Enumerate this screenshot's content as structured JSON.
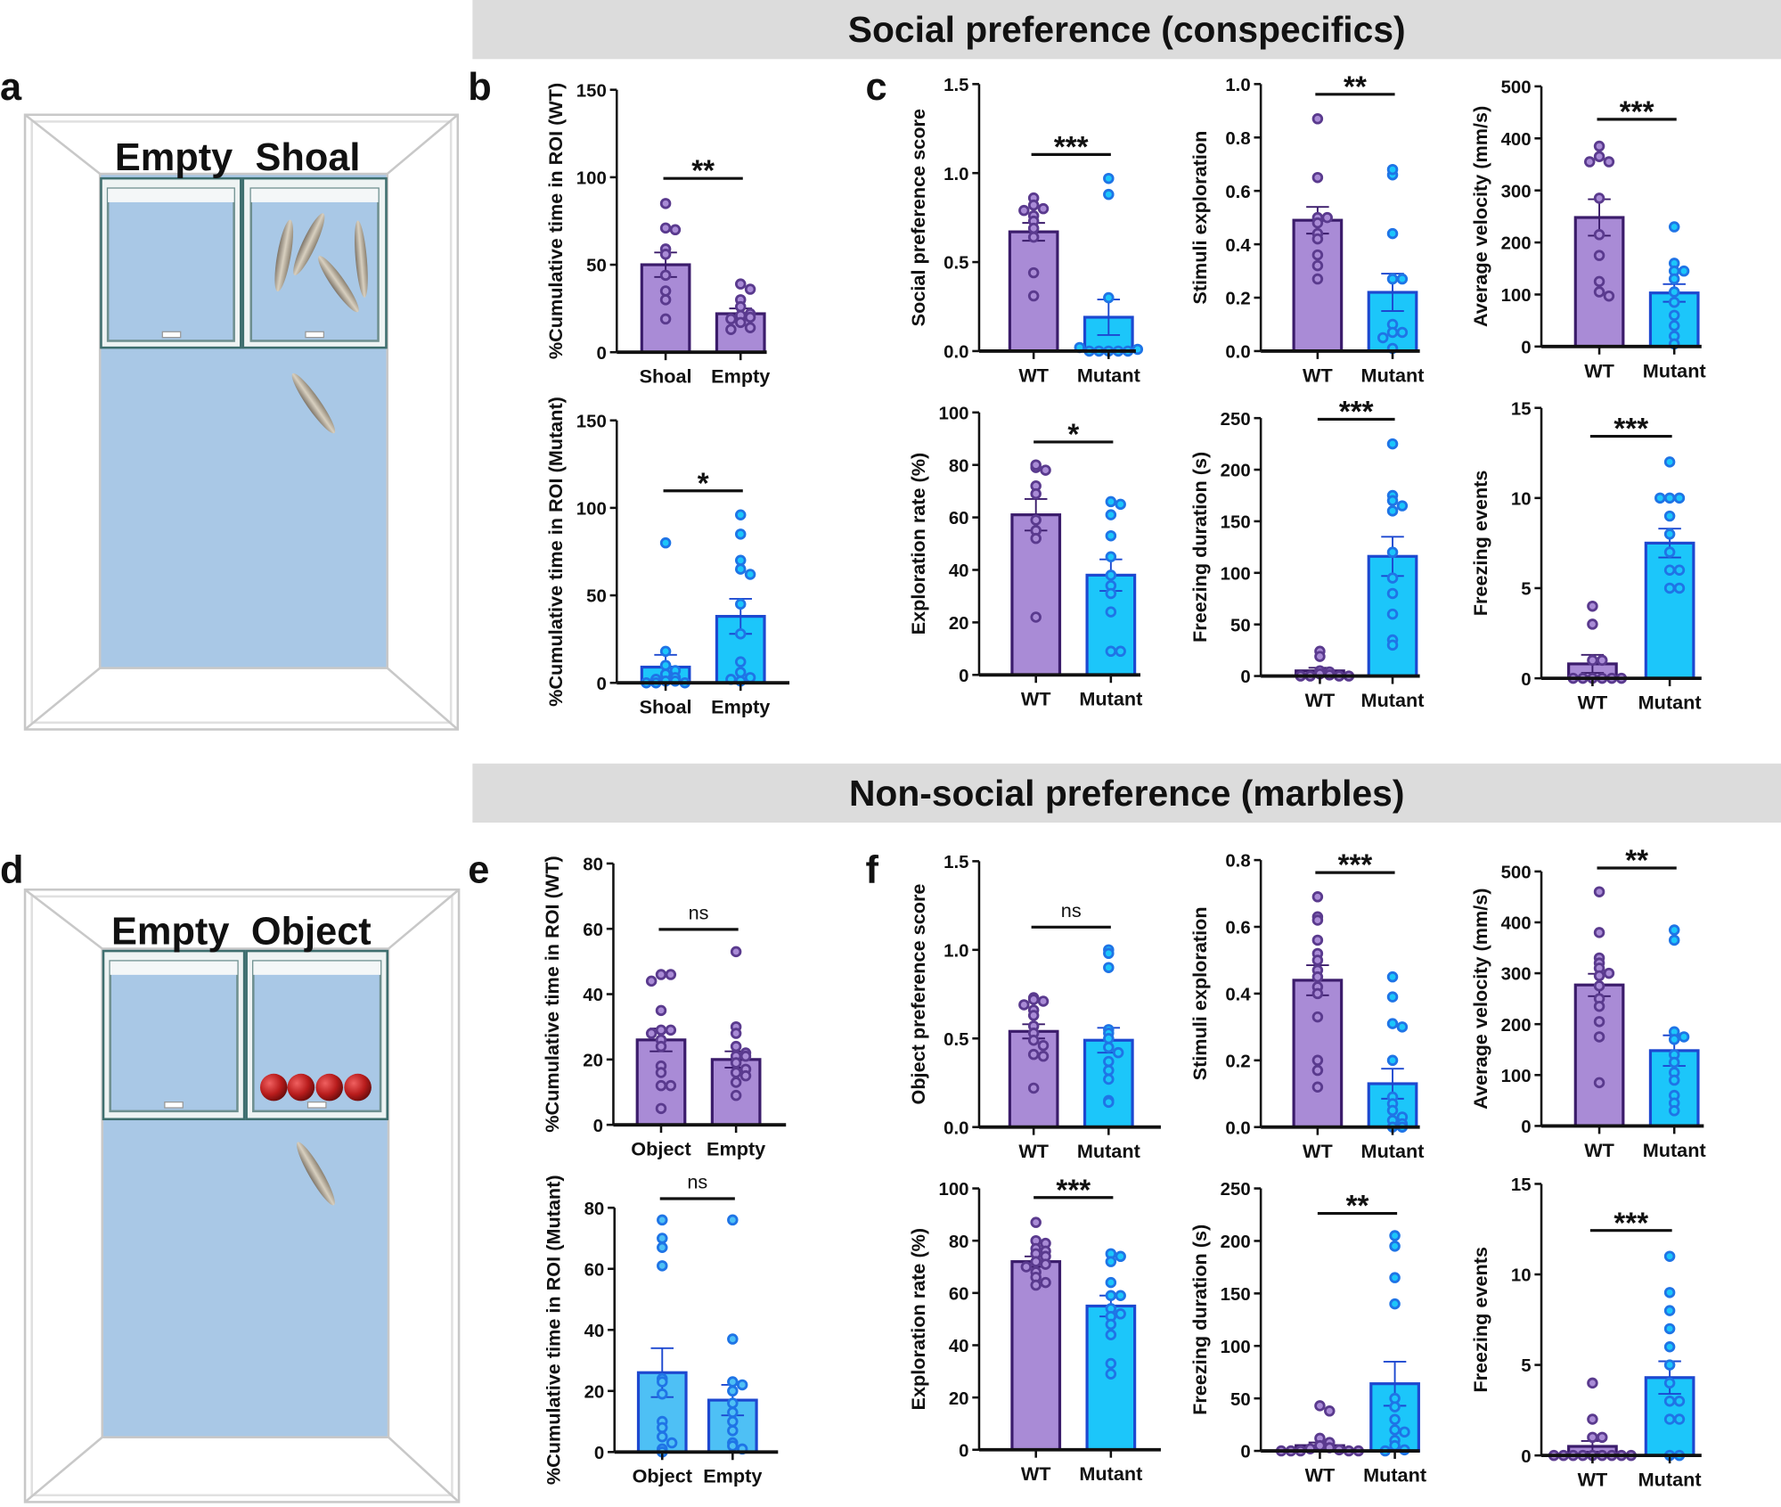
{
  "headers": {
    "social": "Social preference (conspecifics)",
    "nonsocial": "Non-social preference (marbles)"
  },
  "panel_letters": [
    "a",
    "b",
    "c",
    "d",
    "e",
    "f"
  ],
  "tank_a": {
    "label_left": "Empty",
    "label_right": "Shoal"
  },
  "tank_d": {
    "label_left": "Empty",
    "label_right": "Object"
  },
  "colors": {
    "wt_bar": "#a98bd6",
    "wt_edge": "#3b1c6b",
    "wt_point": "#5a3a8e",
    "mut_bar": "#1cc6fa",
    "mut_edge": "#1d48d0",
    "mut_point": "#1f74e6",
    "mut_bar_light": "#4ec0f5",
    "tank_water": "#a9c8e6",
    "marble": "#b81c1c"
  },
  "chart_data": [
    {
      "panel": "b",
      "type": "bar",
      "ylabel": "%Cumulative time in ROI (WT)",
      "ylim": [
        0,
        150
      ],
      "yticks": [
        "0",
        "50",
        "100",
        "150"
      ],
      "categories": [
        "Shoal",
        "Empty"
      ],
      "groups": [
        "wt",
        "wt"
      ],
      "significance": "**",
      "series": [
        {
          "mean": 50,
          "sem": 7,
          "points": [
            85,
            71,
            70,
            59,
            56,
            44,
            35,
            30,
            19
          ]
        },
        {
          "mean": 22,
          "sem": 3,
          "points": [
            39,
            36,
            30,
            26,
            22,
            21,
            20,
            19,
            17,
            14,
            13
          ]
        }
      ]
    },
    {
      "panel": "b",
      "type": "bar",
      "ylabel": "%Cumulative time in ROI (Mutant)",
      "ylim": [
        0,
        150
      ],
      "yticks": [
        "0",
        "50",
        "100",
        "150"
      ],
      "categories": [
        "Shoal",
        "Empty"
      ],
      "groups": [
        "mut",
        "mut"
      ],
      "significance": "*",
      "series": [
        {
          "mean": 9,
          "sem": 7,
          "points": [
            80,
            18,
            10,
            7,
            5,
            3,
            2,
            1,
            1,
            0,
            0,
            0
          ]
        },
        {
          "mean": 38,
          "sem": 10,
          "points": [
            96,
            85,
            70,
            65,
            62,
            45,
            28,
            12,
            6,
            3,
            2,
            1
          ]
        }
      ]
    },
    {
      "panel": "c",
      "type": "bar",
      "ylabel": "Social preference score",
      "ylim": [
        0,
        1.5
      ],
      "yticks": [
        "0.0",
        "0.5",
        "1.0",
        "1.5"
      ],
      "categories": [
        "WT",
        "Mutant"
      ],
      "groups": [
        "wt",
        "mut"
      ],
      "significance": "***",
      "series": [
        {
          "mean": 0.67,
          "sem": 0.05,
          "points": [
            0.86,
            0.82,
            0.8,
            0.79,
            0.76,
            0.73,
            0.69,
            0.64,
            0.44,
            0.31
          ]
        },
        {
          "mean": 0.19,
          "sem": 0.1,
          "points": [
            0.97,
            0.88,
            0.3,
            0.0,
            0.0,
            0.0,
            0.0,
            0.0,
            0.01,
            0.02
          ]
        }
      ]
    },
    {
      "panel": "c",
      "type": "bar",
      "ylabel": "Stimuli exploration",
      "ylim": [
        0,
        1.0
      ],
      "yticks": [
        "0.0",
        "0.2",
        "0.4",
        "0.6",
        "0.8",
        "1.0"
      ],
      "categories": [
        "WT",
        "Mutant"
      ],
      "groups": [
        "wt",
        "mut"
      ],
      "significance": "**",
      "series": [
        {
          "mean": 0.49,
          "sem": 0.05,
          "points": [
            0.87,
            0.65,
            0.5,
            0.5,
            0.48,
            0.44,
            0.42,
            0.36,
            0.32,
            0.27
          ]
        },
        {
          "mean": 0.22,
          "sem": 0.07,
          "points": [
            0.66,
            0.68,
            0.44,
            0.27,
            0.27,
            0.1,
            0.07,
            0.07,
            0.05,
            0.01
          ]
        }
      ]
    },
    {
      "panel": "c",
      "type": "bar",
      "ylabel": "Average velocity (mm/s)",
      "ylim": [
        0,
        500
      ],
      "yticks": [
        "0",
        "100",
        "200",
        "300",
        "400",
        "500"
      ],
      "categories": [
        "WT",
        "Mutant"
      ],
      "groups": [
        "wt",
        "mut"
      ],
      "significance": "***",
      "series": [
        {
          "mean": 248,
          "sem": 35,
          "points": [
            385,
            365,
            355,
            355,
            285,
            215,
            175,
            125,
            105,
            97
          ]
        },
        {
          "mean": 103,
          "sem": 17,
          "points": [
            230,
            160,
            145,
            145,
            130,
            105,
            85,
            60,
            40,
            20,
            5
          ]
        }
      ]
    },
    {
      "panel": "c",
      "type": "bar",
      "ylabel": "Exploration rate (%)",
      "ylim": [
        0,
        100
      ],
      "yticks": [
        "0",
        "20",
        "40",
        "60",
        "80",
        "100"
      ],
      "categories": [
        "WT",
        "Mutant"
      ],
      "groups": [
        "wt",
        "mut"
      ],
      "significance": "*",
      "series": [
        {
          "mean": 61,
          "sem": 6,
          "points": [
            79,
            80,
            78,
            72,
            69,
            59,
            55,
            52,
            22
          ]
        },
        {
          "mean": 38,
          "sem": 6,
          "points": [
            66,
            65,
            61,
            53,
            45,
            38,
            34,
            31,
            24,
            9,
            9
          ]
        }
      ]
    },
    {
      "panel": "c",
      "type": "bar",
      "ylabel": "Freezing duration (s)",
      "ylim": [
        0,
        250
      ],
      "yticks": [
        "0",
        "50",
        "100",
        "150",
        "200",
        "250"
      ],
      "categories": [
        "WT",
        "Mutant"
      ],
      "groups": [
        "wt",
        "mut"
      ],
      "significance": "***",
      "series": [
        {
          "mean": 5,
          "sem": 3,
          "points": [
            24,
            19,
            5,
            4,
            2,
            1,
            0,
            0,
            0,
            0
          ]
        },
        {
          "mean": 116,
          "sem": 19,
          "points": [
            225,
            175,
            170,
            160,
            165,
            120,
            95,
            80,
            60,
            35,
            30
          ]
        }
      ]
    },
    {
      "panel": "c",
      "type": "bar",
      "ylabel": "Freezing events",
      "ylim": [
        0,
        15
      ],
      "yticks": [
        "0",
        "5",
        "10",
        "15"
      ],
      "categories": [
        "WT",
        "Mutant"
      ],
      "groups": [
        "wt",
        "mut"
      ],
      "significance": "***",
      "series": [
        {
          "mean": 0.8,
          "sem": 0.5,
          "points": [
            4,
            3,
            1,
            1,
            0,
            0,
            0,
            0,
            0,
            0
          ]
        },
        {
          "mean": 7.5,
          "sem": 0.8,
          "points": [
            12,
            10,
            10,
            10,
            9,
            8,
            7,
            6,
            6,
            5,
            5
          ]
        }
      ]
    },
    {
      "panel": "e",
      "type": "bar",
      "ylabel": "%Cumulative time in ROI (WT)",
      "ylim": [
        0,
        80
      ],
      "yticks": [
        "0",
        "20",
        "40",
        "60",
        "80"
      ],
      "categories": [
        "Object",
        "Empty"
      ],
      "groups": [
        "wt",
        "wt"
      ],
      "significance": "ns",
      "series": [
        {
          "mean": 26,
          "sem": 3.5,
          "points": [
            46,
            46,
            44,
            35,
            29,
            29,
            28,
            26,
            24,
            18,
            16,
            12,
            12,
            5
          ]
        },
        {
          "mean": 20,
          "sem": 2.5,
          "points": [
            53,
            30,
            28,
            24,
            22,
            21,
            21,
            19,
            17,
            16,
            15,
            13,
            9
          ]
        }
      ]
    },
    {
      "panel": "e",
      "type": "bar",
      "ylabel": "%Cumulative time in ROI (Mutant)",
      "ylim": [
        0,
        80
      ],
      "yticks": [
        "0",
        "20",
        "40",
        "60",
        "80"
      ],
      "categories": [
        "Object",
        "Empty"
      ],
      "groups": [
        "mutl",
        "mutl"
      ],
      "significance": "ns",
      "series": [
        {
          "mean": 26,
          "sem": 8,
          "points": [
            76,
            70,
            67,
            61,
            24,
            23,
            19,
            10,
            8,
            5,
            3,
            1,
            0
          ]
        },
        {
          "mean": 17,
          "sem": 5,
          "points": [
            76,
            37,
            23,
            22,
            20,
            16,
            13,
            10,
            7,
            3,
            2,
            1
          ]
        }
      ]
    },
    {
      "panel": "f",
      "type": "bar",
      "ylabel": "Object preference score",
      "ylim": [
        0,
        1.5
      ],
      "yticks": [
        "0.0",
        "0.5",
        "1.0",
        "1.5"
      ],
      "categories": [
        "WT",
        "Mutant"
      ],
      "groups": [
        "wt",
        "mut"
      ],
      "significance": "ns",
      "series": [
        {
          "mean": 0.54,
          "sem": 0.04,
          "points": [
            0.73,
            0.72,
            0.71,
            0.69,
            0.66,
            0.63,
            0.57,
            0.53,
            0.49,
            0.46,
            0.41,
            0.4,
            0.22
          ]
        },
        {
          "mean": 0.49,
          "sem": 0.07,
          "points": [
            1.0,
            0.98,
            0.9,
            0.55,
            0.53,
            0.5,
            0.45,
            0.42,
            0.37,
            0.32,
            0.27,
            0.15,
            0.14
          ]
        }
      ]
    },
    {
      "panel": "f",
      "type": "bar",
      "ylabel": "Stimuli exploration",
      "ylim": [
        0,
        0.8
      ],
      "yticks": [
        "0.0",
        "0.2",
        "0.4",
        "0.6",
        "0.8"
      ],
      "categories": [
        "WT",
        "Mutant"
      ],
      "groups": [
        "wt",
        "mut"
      ],
      "significance": "***",
      "series": [
        {
          "mean": 0.44,
          "sem": 0.045,
          "points": [
            0.69,
            0.63,
            0.62,
            0.56,
            0.52,
            0.5,
            0.47,
            0.45,
            0.42,
            0.4,
            0.33,
            0.2,
            0.17,
            0.12
          ]
        },
        {
          "mean": 0.13,
          "sem": 0.045,
          "points": [
            0.45,
            0.39,
            0.31,
            0.3,
            0.2,
            0.09,
            0.07,
            0.05,
            0.03,
            0.02,
            0.01,
            0,
            0
          ]
        }
      ]
    },
    {
      "panel": "f",
      "type": "bar",
      "ylabel": "Average velocity (mm/s)",
      "ylim": [
        0,
        500
      ],
      "yticks": [
        "0",
        "100",
        "200",
        "300",
        "400",
        "500"
      ],
      "categories": [
        "WT",
        "Mutant"
      ],
      "groups": [
        "wt",
        "mut"
      ],
      "significance": "**",
      "series": [
        {
          "mean": 277,
          "sem": 22,
          "points": [
            460,
            380,
            330,
            320,
            310,
            300,
            295,
            275,
            250,
            235,
            205,
            175,
            85
          ]
        },
        {
          "mean": 148,
          "sem": 30,
          "points": [
            385,
            365,
            185,
            175,
            170,
            140,
            125,
            105,
            90,
            60,
            45,
            30
          ]
        }
      ]
    },
    {
      "panel": "f",
      "type": "bar",
      "ylabel": "Exploration rate (%)",
      "ylim": [
        0,
        100
      ],
      "yticks": [
        "0",
        "20",
        "40",
        "60",
        "80",
        "100"
      ],
      "categories": [
        "WT",
        "Mutant"
      ],
      "groups": [
        "wt",
        "mut"
      ],
      "significance": "***",
      "series": [
        {
          "mean": 72,
          "sem": 2,
          "points": [
            87,
            80,
            79,
            77,
            76,
            75,
            74,
            72,
            71,
            70,
            68,
            66,
            64,
            63
          ]
        },
        {
          "mean": 55,
          "sem": 4,
          "points": [
            75,
            74,
            72,
            64,
            59,
            59,
            54,
            52,
            51,
            48,
            44,
            33,
            29
          ]
        }
      ]
    },
    {
      "panel": "f",
      "type": "bar",
      "ylabel": "Freezing duration (s)",
      "ylim": [
        0,
        250
      ],
      "yticks": [
        "0",
        "50",
        "100",
        "150",
        "200",
        "250"
      ],
      "categories": [
        "WT",
        "Mutant"
      ],
      "groups": [
        "wt",
        "mut"
      ],
      "significance": "**",
      "series": [
        {
          "mean": 5,
          "sem": 3,
          "points": [
            43,
            38,
            12,
            8,
            5,
            3,
            2,
            1,
            0,
            0,
            0,
            0,
            0
          ]
        },
        {
          "mean": 64,
          "sem": 21,
          "points": [
            205,
            195,
            165,
            140,
            50,
            42,
            30,
            20,
            18,
            10,
            5,
            1,
            0
          ]
        }
      ]
    },
    {
      "panel": "f",
      "type": "bar",
      "ylabel": "Freezing events",
      "ylim": [
        0,
        15
      ],
      "yticks": [
        "0",
        "5",
        "10",
        "15"
      ],
      "categories": [
        "WT",
        "Mutant"
      ],
      "groups": [
        "wt",
        "mut"
      ],
      "significance": "***",
      "series": [
        {
          "mean": 0.5,
          "sem": 0.3,
          "points": [
            4,
            2,
            1,
            1,
            0,
            0,
            0,
            0,
            0,
            0,
            0,
            0,
            0
          ]
        },
        {
          "mean": 4.3,
          "sem": 0.9,
          "points": [
            11,
            9,
            8,
            7,
            6,
            5,
            4,
            3,
            3,
            2,
            2,
            0,
            0
          ]
        }
      ]
    }
  ]
}
